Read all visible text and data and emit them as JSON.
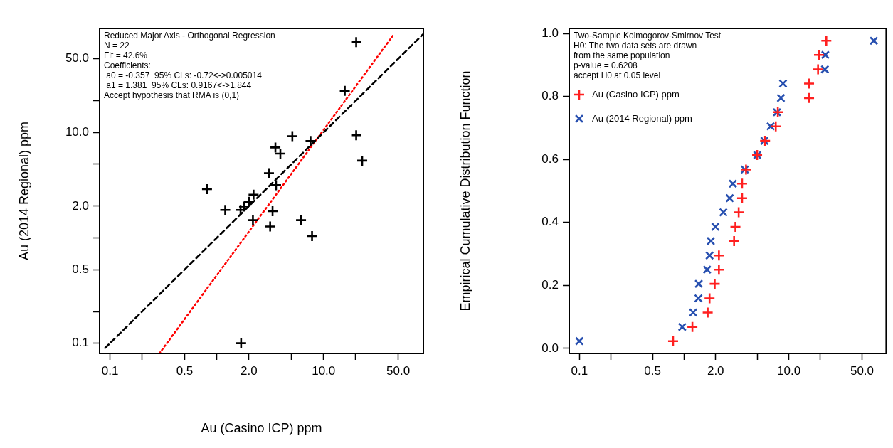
{
  "chart_data": [
    {
      "type": "scatter",
      "xlabel": "Au (Casino ICP) ppm",
      "ylabel": "Au (2014 Regional) ppm",
      "log": "xy",
      "xlim": [
        0.08,
        86
      ],
      "ylim": [
        0.08,
        97
      ],
      "xticks": [
        {
          "value": 0.1,
          "label": "0.1"
        },
        {
          "value": 0.2,
          "label": null
        },
        {
          "value": 0.5,
          "label": "0.5"
        },
        {
          "value": 1,
          "label": null
        },
        {
          "value": 2,
          "label": "2.0"
        },
        {
          "value": 5,
          "label": null
        },
        {
          "value": 10,
          "label": "10.0"
        },
        {
          "value": 20,
          "label": null
        },
        {
          "value": 50,
          "label": "50.0"
        }
      ],
      "yticks": [
        {
          "value": 0.1,
          "label": "0.1"
        },
        {
          "value": 0.2,
          "label": null
        },
        {
          "value": 0.5,
          "label": "0.5"
        },
        {
          "value": 1,
          "label": null
        },
        {
          "value": 2,
          "label": "2.0"
        },
        {
          "value": 5,
          "label": null
        },
        {
          "value": 10,
          "label": "10.0"
        },
        {
          "value": 20,
          "label": null
        },
        {
          "value": 50,
          "label": "50.0"
        }
      ],
      "grid": false,
      "legend": false,
      "annotations": [
        "Reduced Major Axis - Orthogonal Regression",
        "N = 22",
        "Fit = 42.6%",
        "Coefficients:",
        " a0 = -0.357  95% CLs: -0.72<->0.005014",
        " a1 = 1.381  95% CLs: 0.9167<->1.844",
        "Accept hypothesis that RMA is (0,1)"
      ],
      "series": [
        {
          "type": "scatter",
          "color": "#000000",
          "marker": "cross",
          "x": [
            20.2,
            15.8,
            5.1,
            7.55,
            20.2,
            23,
            3.54,
            3.94,
            3.08,
            3.59,
            0.81,
            2.21,
            2.0,
            1.8,
            1.67,
            1.2,
            3.33,
            2.18,
            6.15,
            3.16,
            7.8,
            1.69
          ],
          "values": [
            72,
            24.8,
            9.2,
            8.3,
            9.4,
            5.4,
            7.2,
            6.3,
            4.1,
            3.16,
            2.9,
            2.57,
            2.2,
            1.98,
            1.84,
            1.84,
            1.79,
            1.47,
            1.47,
            1.28,
            1.04,
            0.1
          ]
        },
        {
          "type": "line",
          "color": "#000000",
          "line_style": "dashed",
          "marker": "none",
          "x": [
            0.09,
            85
          ],
          "values": [
            0.09,
            85
          ]
        },
        {
          "type": "line",
          "color": "#ff0000",
          "line_style": "dotted",
          "marker": "none",
          "x": [
            0.29,
            45
          ],
          "values": [
            0.08,
            84
          ]
        }
      ]
    },
    {
      "type": "scatter",
      "ylabel": "Empirical Cumulative Distribution Function",
      "log": "x",
      "xlim": [
        0.08,
        85
      ],
      "ylim": [
        -0.016,
        1.016
      ],
      "xticks": [
        0.1,
        {
          "value": 0.2,
          "label": null
        },
        0.5,
        {
          "value": 1,
          "label": null
        },
        {
          "value": 2,
          "label": "2.0"
        },
        {
          "value": 5,
          "label": null
        },
        {
          "value": 10,
          "label": "10.0"
        },
        {
          "value": 20,
          "label": null
        },
        {
          "value": 50,
          "label": "50.0"
        }
      ],
      "yticks": [
        {
          "value": 0,
          "label": "0.0"
        },
        0.2,
        0.4,
        0.6,
        0.8,
        {
          "value": 1,
          "label": "1.0"
        }
      ],
      "grid": false,
      "legend": "top left",
      "annotations": [
        "Two-Sample Kolmogorov-Smirnov Test",
        "H0: The two data sets are drawn",
        "from the same population",
        "p-value = 0.6208",
        "accept H0 at 0.05 level"
      ],
      "series": [
        {
          "type": "scatter",
          "name": "Au (Casino ICP) ppm",
          "color": "#ff2020",
          "marker": "cross",
          "x": [
            0.785,
            1.2,
            1.68,
            1.75,
            1.96,
            2.15,
            2.15,
            3.0,
            3.09,
            3.32,
            3.58,
            3.58,
            3.9,
            4.98,
            5.93,
            7.5,
            7.85,
            15.6,
            15.6,
            19.0,
            19.4,
            22.8
          ],
          "values": [
            0.023,
            0.068,
            0.114,
            0.159,
            0.205,
            0.25,
            0.295,
            0.341,
            0.386,
            0.432,
            0.477,
            0.523,
            0.568,
            0.614,
            0.659,
            0.705,
            0.75,
            0.795,
            0.841,
            0.886,
            0.932,
            0.977
          ]
        },
        {
          "type": "scatter",
          "name": "Au (2014 Regional) ppm",
          "color": "#2850b0",
          "marker": "x",
          "x": [
            0.1,
            0.96,
            1.22,
            1.37,
            1.38,
            1.66,
            1.75,
            1.8,
            1.99,
            2.37,
            2.73,
            2.92,
            3.8,
            5.0,
            5.85,
            6.7,
            7.7,
            8.4,
            8.8,
            22.1,
            22.3,
            64.8
          ],
          "values": [
            0.023,
            0.068,
            0.114,
            0.159,
            0.205,
            0.25,
            0.295,
            0.341,
            0.386,
            0.432,
            0.477,
            0.523,
            0.568,
            0.614,
            0.659,
            0.705,
            0.75,
            0.795,
            0.841,
            0.886,
            0.932,
            0.977
          ]
        }
      ]
    }
  ]
}
